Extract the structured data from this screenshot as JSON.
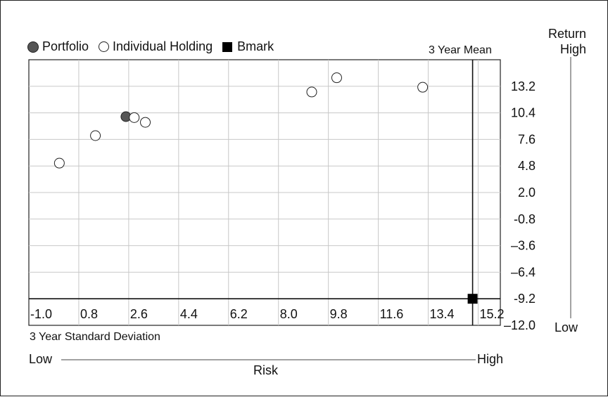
{
  "legend": {
    "portfolio": "Portfolio",
    "holding": "Individual Holding",
    "benchmark": "Bmark"
  },
  "labels": {
    "return_title_1": "Return",
    "return_title_2": "High",
    "return_low": "Low",
    "mean_line": "3 Year Mean",
    "x_title": "3 Year Standard Deviation",
    "risk_low": "Low",
    "risk_high": "High",
    "risk": "Risk"
  },
  "chart_data": {
    "type": "scatter",
    "xlabel": "3 Year Standard Deviation",
    "ylabel": "Return",
    "xlim": [
      -1.0,
      16.0
    ],
    "ylim": [
      -12.0,
      16.0
    ],
    "x_ticks": [
      "-1.0",
      "0.8",
      "2.6",
      "4.4",
      "6.2",
      "8.0",
      "9.8",
      "11.6",
      "13.4",
      "15.2"
    ],
    "x_tick_values": [
      -1.0,
      0.8,
      2.6,
      4.4,
      6.2,
      8.0,
      9.8,
      11.6,
      13.4,
      15.2
    ],
    "y_ticks": [
      "13.2",
      "10.4",
      "7.6",
      "4.8",
      "2.0",
      "-0.8",
      "–3.6",
      "–6.4",
      "-9.2",
      "–12.0"
    ],
    "y_tick_values": [
      13.2,
      10.4,
      7.6,
      4.8,
      2.0,
      -0.8,
      -3.6,
      -6.4,
      -9.2,
      -12.0
    ],
    "mean_x": 15.0,
    "mean_y": -9.2,
    "series": [
      {
        "name": "Portfolio",
        "marker": "filled-circle",
        "color": "#555555",
        "points": [
          [
            2.5,
            10.0
          ]
        ]
      },
      {
        "name": "Individual Holding",
        "marker": "open-circle",
        "color": "#ffffff",
        "points": [
          [
            0.1,
            5.1
          ],
          [
            1.4,
            8.0
          ],
          [
            2.8,
            9.9
          ],
          [
            3.2,
            9.4
          ],
          [
            9.2,
            12.6
          ],
          [
            10.1,
            14.1
          ],
          [
            13.2,
            13.1
          ]
        ]
      },
      {
        "name": "Bmark",
        "marker": "square",
        "color": "#000000",
        "points": [
          [
            15.0,
            -9.2
          ]
        ]
      }
    ]
  }
}
